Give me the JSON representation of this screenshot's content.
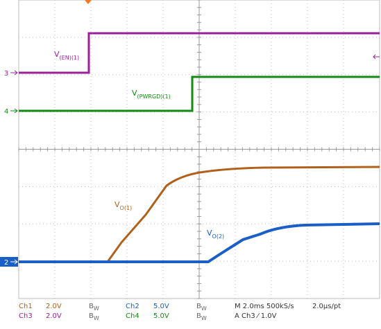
{
  "traces": {
    "en": {
      "main": "V",
      "sub": "(EN)(1)"
    },
    "pwrgd": {
      "main": "V",
      "sub": "(PWRGD)(1)"
    },
    "vo1": {
      "main": "V",
      "sub": "O(1)"
    },
    "vo2": {
      "main": "V",
      "sub": "O(2)"
    }
  },
  "markers": [
    "3",
    "4",
    "2"
  ],
  "settings": {
    "row1": {
      "ch_a": "Ch1",
      "volt_a": "2.0V",
      "bw_a": {
        "main": "B",
        "sub": "W"
      },
      "ch_b": "Ch2",
      "volt_b": "5.0V",
      "bw_b": {
        "main": "B",
        "sub": "W"
      },
      "time": "M 2.0ms 500kS/s",
      "rate": "2.0µs/pt"
    },
    "row2": {
      "ch_a": "Ch3",
      "volt_a": "2.0V",
      "bw_a": {
        "main": "B",
        "sub": "W"
      },
      "ch_b": "Ch4",
      "volt_b": "5.0V",
      "bw_b": {
        "main": "B",
        "sub": "W"
      },
      "trigger": "A  Ch3  ⁄  1.0V"
    }
  }
}
